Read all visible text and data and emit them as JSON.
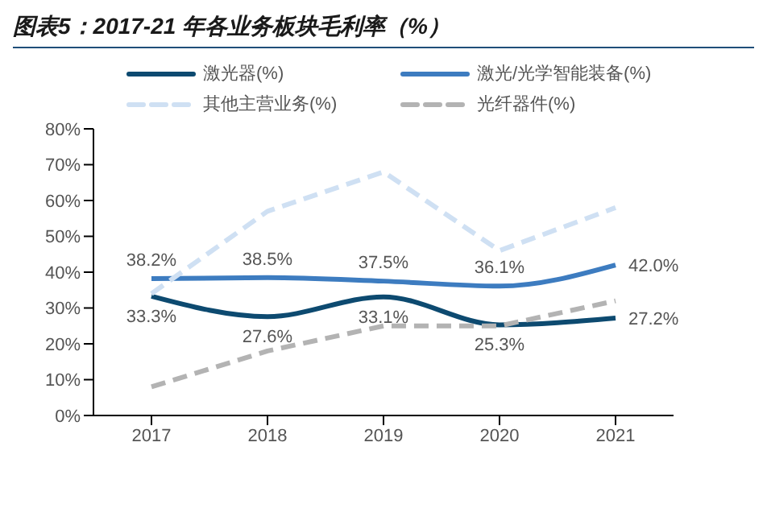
{
  "chart_data": {
    "type": "line",
    "title": "图表5：2017-21 年各业务板块毛利率（%）",
    "categories": [
      "2017",
      "2018",
      "2019",
      "2020",
      "2021"
    ],
    "series": [
      {
        "name": "激光器(%)",
        "color": "#0d4a70",
        "values": [
          33.3,
          27.6,
          33.1,
          25.3,
          27.2
        ],
        "value_labels": [
          "33.3%",
          "27.6%",
          "33.1%",
          "25.3%",
          "27.2%"
        ],
        "line_style": "solid"
      },
      {
        "name": "激光/光学智能装备(%)",
        "color": "#3d7cc0",
        "values": [
          38.2,
          38.5,
          37.5,
          36.1,
          42.0
        ],
        "value_labels": [
          "38.2%",
          "38.5%",
          "37.5%",
          "36.1%",
          "42.0%"
        ],
        "line_style": "solid"
      },
      {
        "name": "其他主营业务(%)",
        "color": "#cfe0f3",
        "values": [
          34,
          57,
          68,
          46,
          58
        ],
        "line_style": "dashed"
      },
      {
        "name": "光纤器件(%)",
        "color": "#b3b3b3",
        "values": [
          8,
          18,
          25,
          25,
          32
        ],
        "line_style": "dashed"
      }
    ],
    "ylim": [
      0,
      80
    ],
    "yticks": [
      {
        "value": 0,
        "label": "0%"
      },
      {
        "value": 10,
        "label": "10%"
      },
      {
        "value": 20,
        "label": "20%"
      },
      {
        "value": 30,
        "label": "30%"
      },
      {
        "value": 40,
        "label": "40%"
      },
      {
        "value": 50,
        "label": "50%"
      },
      {
        "value": 60,
        "label": "60%"
      },
      {
        "value": 70,
        "label": "70%"
      },
      {
        "value": 80,
        "label": "80%"
      }
    ],
    "legend": "top",
    "grid": false,
    "marker": "none"
  }
}
